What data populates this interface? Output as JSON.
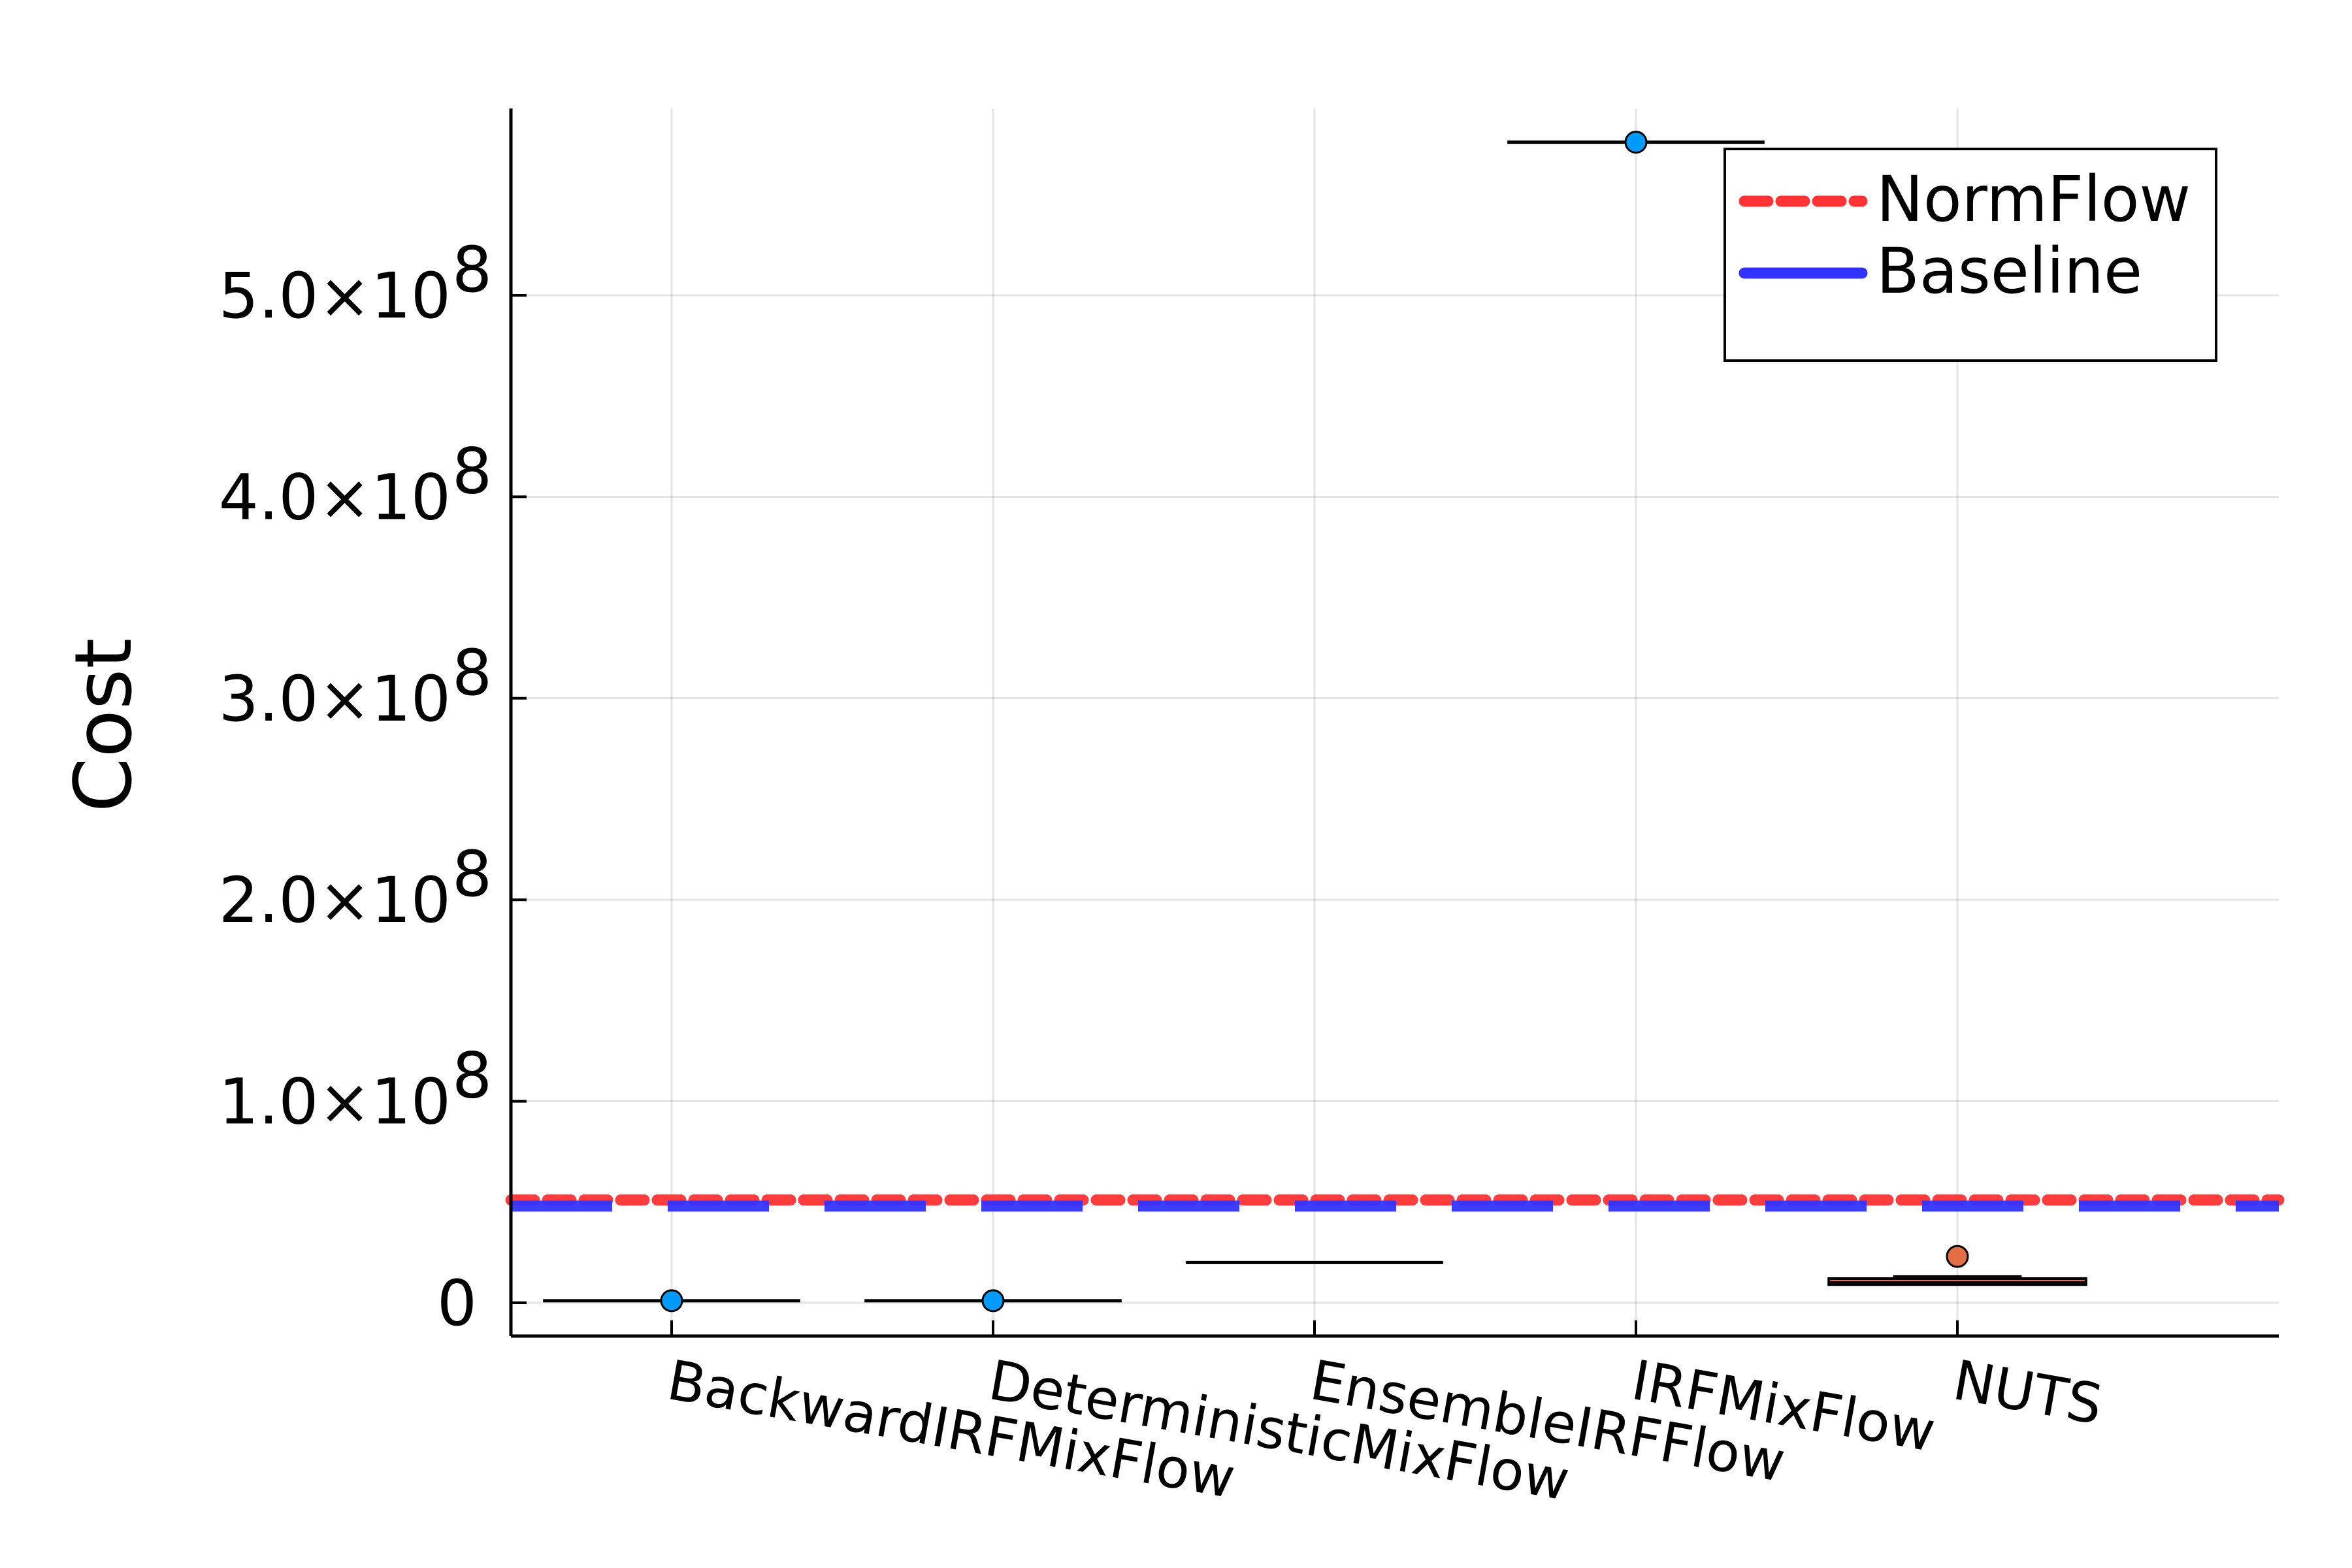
{
  "chart_data": {
    "type": "box",
    "title": "",
    "xlabel": "",
    "ylabel": "Cost",
    "ylim": [
      -16000000,
      594000000
    ],
    "y_ticks": [
      {
        "value": 0,
        "label": "0"
      },
      {
        "value": 100000000,
        "label": "1.0×10",
        "exp": "8"
      },
      {
        "value": 200000000,
        "label": "2.0×10",
        "exp": "8"
      },
      {
        "value": 300000000,
        "label": "3.0×10",
        "exp": "8"
      },
      {
        "value": 400000000,
        "label": "4.0×10",
        "exp": "8"
      },
      {
        "value": 500000000,
        "label": "5.0×10",
        "exp": "8"
      }
    ],
    "grid": true,
    "categories": [
      "BackwardIRFMixFlow",
      "DeterministicMixFlow",
      "EnsembleIRFFlow",
      "IRFMixFlow",
      "NUTS"
    ],
    "boxes": [
      {
        "category": "BackwardIRFMixFlow",
        "median": 1000000,
        "q1": 1000000,
        "q3": 1000000,
        "whisker_low": 1000000,
        "whisker_high": 1000000,
        "outliers": [
          1000000
        ],
        "color": "#009AFA"
      },
      {
        "category": "DeterministicMixFlow",
        "median": 1000000,
        "q1": 1000000,
        "q3": 1000000,
        "whisker_low": 1000000,
        "whisker_high": 1000000,
        "outliers": [
          1000000
        ],
        "color": "#009AFA"
      },
      {
        "category": "EnsembleIRFFlow",
        "median": 20000000,
        "q1": 20000000,
        "q3": 20000000,
        "whisker_low": 20000000,
        "whisker_high": 20000000,
        "outliers": [],
        "color": "#009AFA"
      },
      {
        "category": "IRFMixFlow",
        "median": 576000000,
        "q1": 576000000,
        "q3": 576000000,
        "whisker_low": 576000000,
        "whisker_high": 576000000,
        "outliers": [
          576000000
        ],
        "color": "#009AFA"
      },
      {
        "category": "NUTS",
        "median": 10000000,
        "q1": 9000000,
        "q3": 12000000,
        "whisker_low": 9000000,
        "whisker_high": 13000000,
        "outliers": [
          23000000
        ],
        "color": "#E26F46"
      }
    ],
    "reference_lines": [
      {
        "name": "NormFlow",
        "value": 51000000,
        "color": "#FF3333",
        "style": "dotted"
      },
      {
        "name": "Baseline",
        "value": 48000000,
        "color": "#3333FF",
        "style": "dashed"
      }
    ],
    "legend": {
      "position": "top-right"
    }
  }
}
